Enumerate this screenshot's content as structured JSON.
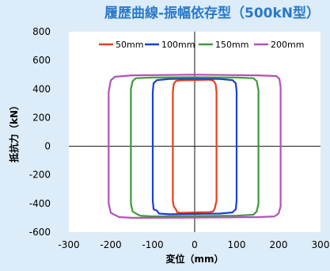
{
  "chart_data": {
    "type": "line",
    "title": "履歴曲線-振幅依存型（500kN型）",
    "xlabel": "変位（mm）",
    "ylabel": "抵抗力（kN）",
    "xlim": [
      -300,
      300
    ],
    "ylim": [
      -600,
      800
    ],
    "x_ticks": [
      "-300",
      "-200",
      "-100",
      "0",
      "100",
      "200",
      "300"
    ],
    "y_ticks": [
      "800",
      "600",
      "400",
      "200",
      "0",
      "-200",
      "-400",
      "-600"
    ],
    "x_tick_values": [
      -300,
      -200,
      -100,
      0,
      100,
      200,
      300
    ],
    "y_tick_values": [
      800,
      600,
      400,
      200,
      0,
      -200,
      -400,
      -600
    ],
    "grid": false,
    "axes_through_origin": true,
    "legend_position": "top",
    "series": [
      {
        "name": "50mm",
        "color": "#e8401c",
        "x": [
          -45,
          -42,
          -35,
          0,
          35,
          44,
          48,
          52,
          52,
          50,
          45,
          42,
          35,
          0,
          -35,
          -45,
          -50,
          -52,
          -52,
          -50,
          -45
        ],
        "y": [
          -440,
          -460,
          -465,
          -462,
          -460,
          -455,
          -435,
          -380,
          380,
          435,
          455,
          460,
          465,
          462,
          460,
          455,
          435,
          380,
          -380,
          -420,
          -440
        ]
      },
      {
        "name": "100mm",
        "color": "#1c3fd0",
        "x": [
          -90,
          -85,
          -60,
          0,
          60,
          90,
          98,
          100,
          100,
          98,
          90,
          60,
          0,
          -60,
          -90,
          -98,
          -100,
          -100,
          -98,
          -90
        ],
        "y": [
          -450,
          -470,
          -475,
          -472,
          -470,
          -462,
          -440,
          -380,
          380,
          440,
          462,
          470,
          472,
          470,
          462,
          440,
          380,
          -380,
          -440,
          -450
        ]
      },
      {
        "name": "150mm",
        "color": "#3a9a3a",
        "x": [
          -140,
          -130,
          -100,
          0,
          100,
          140,
          148,
          152,
          152,
          148,
          140,
          100,
          0,
          -100,
          -140,
          -148,
          -152,
          -152,
          -148,
          -140
        ],
        "y": [
          -470,
          -485,
          -490,
          -487,
          -485,
          -478,
          -455,
          -400,
          390,
          455,
          475,
          480,
          482,
          480,
          475,
          455,
          400,
          -400,
          -455,
          -470
        ]
      },
      {
        "name": "200mm",
        "color": "#b352b3",
        "x": [
          -190,
          -180,
          -150,
          0,
          150,
          190,
          200,
          205,
          205,
          202,
          195,
          150,
          0,
          -150,
          -190,
          -200,
          -205,
          -205,
          -200,
          -190
        ],
        "y": [
          -480,
          -495,
          -500,
          -498,
          -495,
          -490,
          -470,
          -420,
          410,
          470,
          490,
          495,
          500,
          495,
          485,
          460,
          380,
          -400,
          -465,
          -480
        ]
      }
    ]
  }
}
